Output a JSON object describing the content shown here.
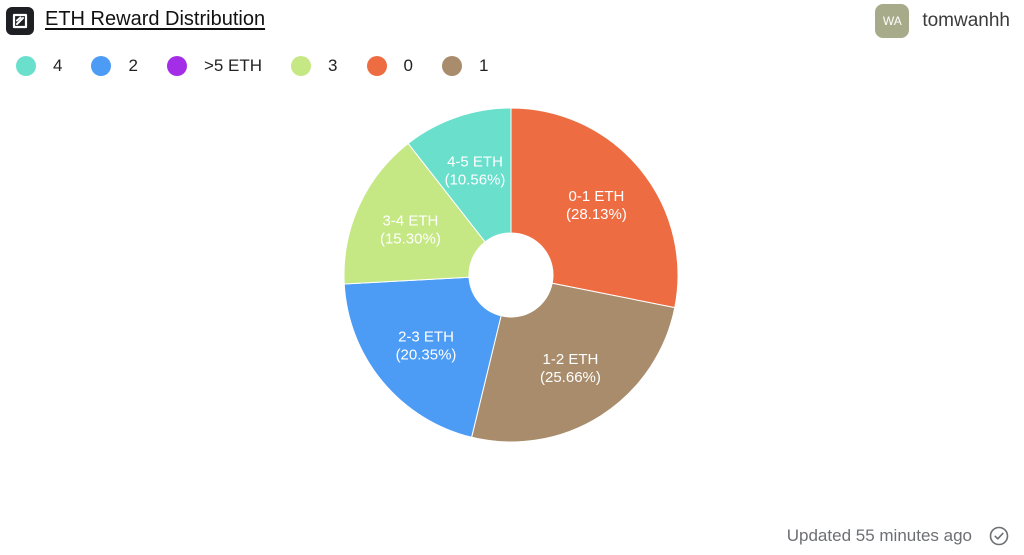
{
  "header": {
    "title": "ETH Reward Distribution",
    "logo_icon": "app-logo-icon",
    "user": {
      "initials": "WA",
      "name": "tomwanhh"
    }
  },
  "legend": [
    {
      "label": "4",
      "color": "#69dfcc"
    },
    {
      "label": "2",
      "color": "#4c9bf5"
    },
    {
      "label": ">5 ETH",
      "color": "#a42ee8"
    },
    {
      "label": "3",
      "color": "#c5e884"
    },
    {
      "label": "0",
      "color": "#ee6c42"
    },
    {
      "label": "1",
      "color": "#a88c6b"
    }
  ],
  "chart_data": {
    "type": "pie",
    "variant": "donut",
    "categories": [
      "0-1 ETH",
      "1-2 ETH",
      "2-3 ETH",
      "3-4 ETH",
      "4-5 ETH"
    ],
    "values": [
      28.13,
      25.66,
      20.35,
      15.3,
      10.56
    ],
    "labels": [
      "(28.13%)",
      "(25.66%)",
      "(20.35%)",
      "(15.30%)",
      "(10.56%)"
    ],
    "colors": [
      "#ee6c42",
      "#a88c6b",
      "#4c9bf5",
      "#c5e884",
      "#69dfcc"
    ]
  },
  "footer": {
    "updated": "Updated 55 minutes ago",
    "icon": "check-circle-icon"
  }
}
